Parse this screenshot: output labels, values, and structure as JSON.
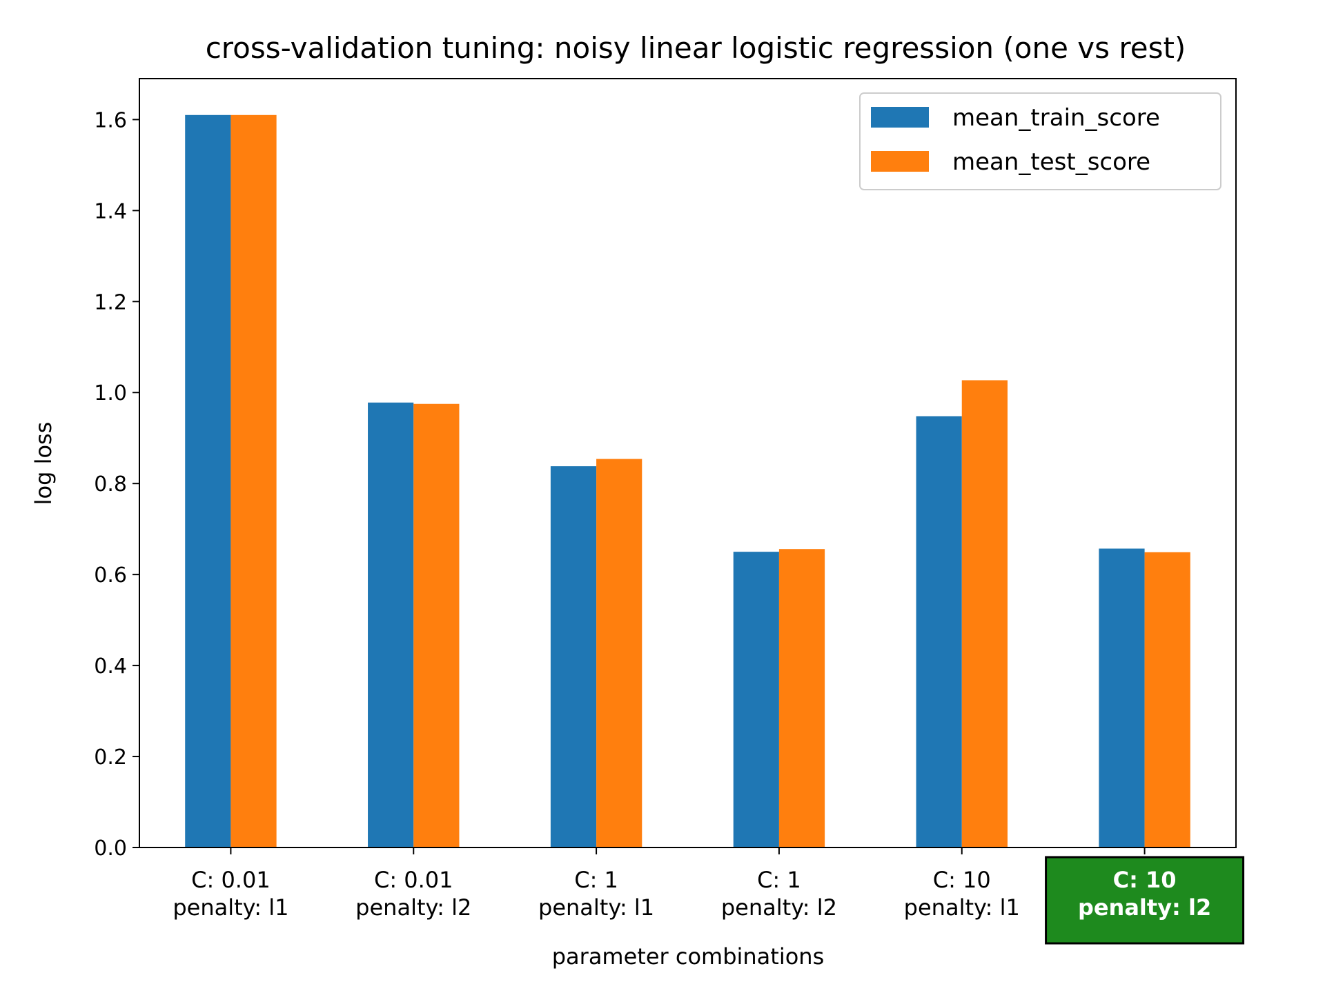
{
  "chart_data": {
    "type": "bar",
    "title": "cross-validation tuning: noisy linear logistic regression (one vs rest)",
    "xlabel": "parameter combinations",
    "ylabel": "log loss",
    "ylim": [
      0,
      1.69
    ],
    "yticks": [
      "0.0",
      "0.2",
      "0.4",
      "0.6",
      "0.8",
      "1.0",
      "1.2",
      "1.4",
      "1.6"
    ],
    "ytick_values": [
      0,
      0.2,
      0.4,
      0.6,
      0.8,
      1.0,
      1.2,
      1.4,
      1.6
    ],
    "categories": [
      {
        "line1": "C: 0.01",
        "line2": "penalty: l1",
        "highlight": false
      },
      {
        "line1": "C: 0.01",
        "line2": "penalty: l2",
        "highlight": false
      },
      {
        "line1": "C: 1",
        "line2": "penalty: l1",
        "highlight": false
      },
      {
        "line1": "C: 1",
        "line2": "penalty: l2",
        "highlight": false
      },
      {
        "line1": "C: 10",
        "line2": "penalty: l1",
        "highlight": false
      },
      {
        "line1": "C: 10",
        "line2": "penalty: l2",
        "highlight": true
      }
    ],
    "series": [
      {
        "name": "mean_train_score",
        "color": "#1f77b4",
        "values": [
          1.61,
          0.978,
          0.838,
          0.65,
          0.948,
          0.657
        ]
      },
      {
        "name": "mean_test_score",
        "color": "#ff7f0e",
        "values": [
          1.61,
          0.975,
          0.854,
          0.656,
          1.027,
          0.649
        ]
      }
    ],
    "legend_position": "top-right",
    "grid": false,
    "highlight_color": "#1e8a1e"
  }
}
